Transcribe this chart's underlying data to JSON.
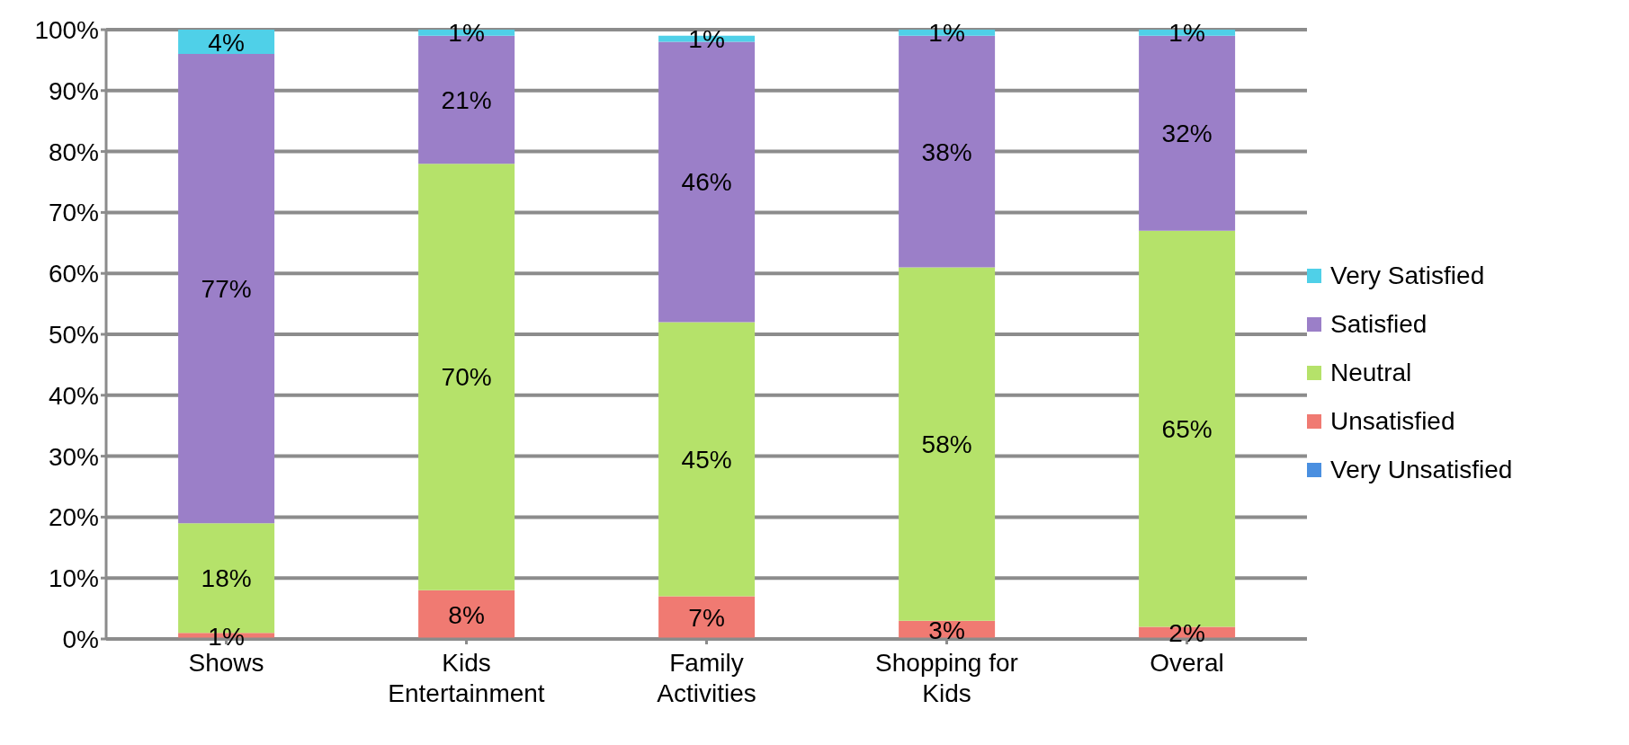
{
  "chart_data": {
    "type": "bar",
    "stacked": true,
    "categories": [
      "Shows",
      "Kids Entertainment",
      "Family Activities",
      "Shopping for Kids",
      "Overal"
    ],
    "series": [
      {
        "name": "Very Unsatisfied",
        "color": "#4a8fe0",
        "values": [
          0,
          0,
          0,
          0,
          0
        ],
        "value_labels": [
          null,
          null,
          null,
          null,
          null
        ]
      },
      {
        "name": "Unsatisfied",
        "color": "#f07a72",
        "values": [
          1,
          8,
          7,
          3,
          2
        ],
        "value_labels": [
          "1%",
          "8%",
          "7%",
          "3%",
          "2%"
        ]
      },
      {
        "name": "Neutral",
        "color": "#b5e26a",
        "values": [
          18,
          70,
          45,
          58,
          65
        ],
        "value_labels": [
          "18%",
          "70%",
          "45%",
          "58%",
          "65%"
        ]
      },
      {
        "name": "Satisfied",
        "color": "#9b7fc8",
        "values": [
          77,
          21,
          46,
          38,
          32
        ],
        "value_labels": [
          "77%",
          "21%",
          "46%",
          "38%",
          "32%"
        ]
      },
      {
        "name": "Very Satisfied",
        "color": "#4fd0e8",
        "values": [
          4,
          1,
          1,
          1,
          1
        ],
        "value_labels": [
          "4%",
          "1%",
          "1%",
          "1%",
          "1%"
        ]
      }
    ],
    "ylim": [
      0,
      100
    ],
    "yticks": [
      {
        "value": 0,
        "label": "0%"
      },
      {
        "value": 10,
        "label": "10%"
      },
      {
        "value": 20,
        "label": "20%"
      },
      {
        "value": 30,
        "label": "30%"
      },
      {
        "value": 40,
        "label": "40%"
      },
      {
        "value": 50,
        "label": "50%"
      },
      {
        "value": 60,
        "label": "60%"
      },
      {
        "value": 70,
        "label": "70%"
      },
      {
        "value": 80,
        "label": "80%"
      },
      {
        "value": 90,
        "label": "90%"
      },
      {
        "value": 100,
        "label": "100%"
      }
    ],
    "grid": "y",
    "legend": "right"
  }
}
